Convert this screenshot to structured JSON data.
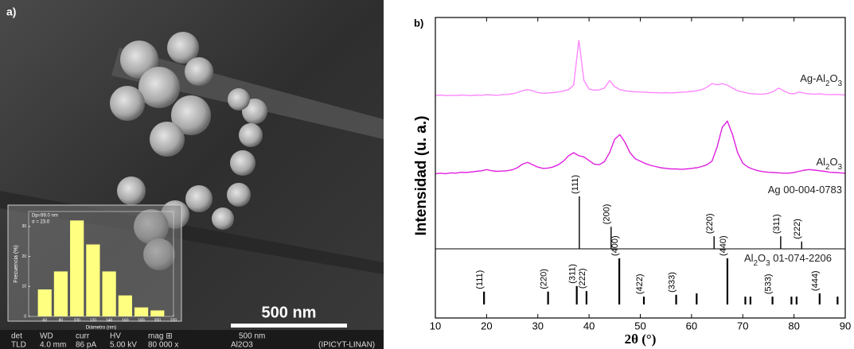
{
  "sem": {
    "panel_label": "a)",
    "scale_bar": "500 nm",
    "info_headers": [
      "det",
      "WD",
      "curr",
      "HV",
      "mag ⊞",
      "500 nm"
    ],
    "info_values": [
      "TLD",
      "4.0 mm",
      "86 pA",
      "5.00 kV",
      "80 000 x",
      "Al2O3",
      "(IPICYT-LINAN)"
    ]
  },
  "chart_data": [
    {
      "type": "histogram",
      "xlabel": "Diámetro (nm)",
      "ylabel": "Frecuencia (%)",
      "annotations": [
        "Dp=99.0 nm",
        "σ = 23.0"
      ],
      "bins": [
        50,
        70,
        90,
        110,
        130,
        150,
        170,
        190,
        210
      ],
      "values": [
        9,
        15,
        32,
        24,
        15,
        7,
        3,
        2
      ],
      "color": "#ffff80",
      "xlim": [
        40,
        220
      ],
      "xticks": [
        60,
        80,
        100,
        120,
        140,
        160,
        180,
        200,
        220
      ],
      "ylim": [
        0,
        35
      ],
      "yticks": [
        0,
        10,
        20,
        30
      ]
    },
    {
      "type": "line",
      "panel_label": "b)",
      "xlabel": "2θ (°)",
      "ylabel": "Intensidad (u. a.)",
      "xlim": [
        10,
        90
      ],
      "xticks": [
        10,
        20,
        30,
        40,
        50,
        60,
        70,
        80,
        90
      ],
      "ylim": [
        0,
        100
      ],
      "x": [
        10,
        11,
        12,
        13,
        14,
        15,
        16,
        17,
        18,
        19,
        20,
        21,
        22,
        23,
        24,
        25,
        26,
        27,
        28,
        29,
        30,
        31,
        32,
        33,
        34,
        35,
        36,
        37,
        38,
        39,
        40,
        41,
        42,
        43,
        44,
        45,
        46,
        47,
        48,
        49,
        50,
        51,
        52,
        53,
        54,
        55,
        56,
        57,
        58,
        59,
        60,
        61,
        62,
        63,
        64,
        65,
        66,
        67,
        68,
        69,
        70,
        71,
        72,
        73,
        74,
        75,
        76,
        77,
        78,
        79,
        80,
        81,
        82,
        83,
        84,
        85,
        86,
        87,
        88,
        89,
        90
      ],
      "series": [
        {
          "name": "Ag-Al2O3",
          "color": "#ff88ff",
          "values": [
            74.0,
            74.2,
            74.0,
            74.1,
            74.0,
            74.2,
            74.1,
            74.0,
            74.2,
            74.1,
            74.3,
            74.2,
            74.1,
            74.3,
            74.4,
            74.6,
            75.0,
            75.6,
            76.0,
            75.6,
            75.0,
            74.8,
            74.9,
            75.0,
            75.2,
            75.5,
            76.0,
            77.5,
            92.5,
            79.0,
            76.2,
            75.8,
            75.9,
            76.5,
            79.0,
            77.0,
            76.0,
            75.6,
            75.4,
            75.3,
            75.2,
            75.1,
            75.0,
            75.0,
            74.9,
            75.0,
            74.9,
            75.0,
            75.1,
            75.2,
            75.4,
            75.6,
            76.0,
            76.8,
            78.0,
            77.6,
            78.0,
            77.5,
            76.5,
            75.6,
            75.2,
            74.8,
            74.6,
            74.5,
            74.5,
            74.8,
            75.4,
            76.5,
            75.6,
            74.8,
            74.6,
            75.2,
            74.8,
            74.6,
            74.5,
            74.6,
            74.4,
            74.3,
            74.4,
            74.3,
            74.2
          ]
        },
        {
          "name": "Al2O3",
          "color": "#e020e0",
          "values": [
            48.0,
            48.2,
            48.0,
            48.3,
            48.2,
            48.5,
            48.4,
            48.6,
            48.8,
            49.0,
            49.4,
            49.0,
            48.8,
            48.9,
            49.0,
            49.3,
            50.0,
            51.2,
            51.8,
            51.0,
            50.2,
            49.8,
            49.9,
            50.3,
            51.0,
            52.2,
            54.0,
            55.0,
            54.0,
            53.6,
            52.4,
            51.2,
            51.0,
            52.0,
            55.0,
            59.5,
            61.0,
            58.5,
            55.0,
            53.0,
            52.2,
            51.4,
            50.8,
            50.4,
            50.0,
            49.8,
            49.6,
            49.6,
            49.5,
            49.6,
            49.8,
            50.0,
            50.4,
            51.0,
            52.2,
            57.0,
            63.5,
            65.5,
            61.0,
            55.0,
            51.5,
            50.2,
            49.5,
            49.0,
            48.7,
            48.5,
            48.4,
            48.3,
            48.2,
            48.2,
            48.4,
            48.8,
            49.2,
            49.4,
            49.2,
            49.0,
            48.8,
            48.5,
            48.4,
            48.3,
            48.2
          ]
        }
      ],
      "references": [
        {
          "name": "Ag 00-004-0783",
          "x": [
            38.1,
            44.3,
            64.4,
            77.4,
            81.5
          ],
          "values": [
            100,
            42,
            24,
            24,
            14
          ],
          "labels": [
            "(111)",
            "(200)",
            "(220)",
            "(311)",
            "(222)"
          ]
        },
        {
          "name": "Al2O3 01-074-2206",
          "x": [
            19.5,
            32.0,
            37.6,
            39.5,
            45.9,
            50.7,
            57.0,
            61.0,
            67.0,
            70.5,
            71.5,
            75.8,
            79.5,
            80.5,
            85.0,
            88.5
          ],
          "values": [
            28,
            28,
            40,
            29,
            100,
            17,
            21,
            24,
            100,
            17,
            17,
            17,
            17,
            17,
            24,
            17
          ],
          "labels": [
            "(111)",
            "(220)",
            "(311)",
            "(222)",
            "(400)",
            "(422)",
            "(333)",
            null,
            "(440)",
            null,
            null,
            "(533)",
            null,
            null,
            "(444)",
            null
          ]
        }
      ]
    }
  ]
}
